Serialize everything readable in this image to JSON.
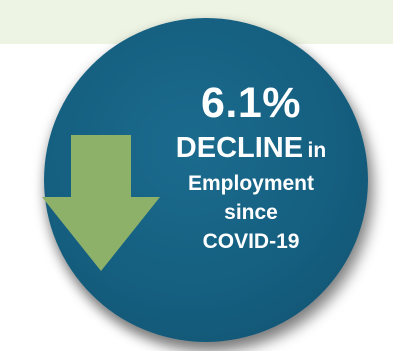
{
  "badge": {
    "percent": "6.1%",
    "decline_word": "DECLINE",
    "in_word": "in",
    "line3": "Employment",
    "line4": "since",
    "line5": "COVID-19"
  },
  "colors": {
    "circle": "#155f80",
    "arrow": "#8eb169",
    "top_band": "#eef4e4",
    "text": "#ffffff"
  },
  "icons": {
    "arrow": "down-arrow-icon"
  }
}
